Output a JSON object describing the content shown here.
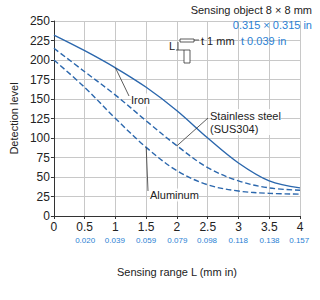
{
  "chart_data": {
    "type": "line",
    "xlabel": "Sensing range L (mm in)",
    "ylabel": "Detection level",
    "x": [
      0,
      0.5,
      1,
      1.5,
      2,
      2.5,
      3,
      3.5,
      4
    ],
    "series": [
      {
        "name": "Iron",
        "color": "#2b67ad",
        "line_style": "solid",
        "values": [
          232,
          212,
          190,
          165,
          135,
          100,
          68,
          45,
          36
        ]
      },
      {
        "name": "Stainless steel\n(SUS304)",
        "color": "#2b67ad",
        "line_style": "dashed",
        "values": [
          215,
          185,
          155,
          122,
          90,
          62,
          45,
          36,
          33
        ]
      },
      {
        "name": "Aluminum",
        "color": "#2b67ad",
        "line_style": "dashed",
        "values": [
          200,
          165,
          125,
          88,
          58,
          40,
          32,
          29,
          28
        ]
      }
    ],
    "xlim": [
      0,
      4
    ],
    "xticks": [
      0,
      0.5,
      1,
      1.5,
      2,
      2.5,
      3,
      3.5,
      4
    ],
    "x2lim": [
      0,
      0.15748
    ],
    "x2ticks": [
      {
        "value": 0.02,
        "label": "0.020"
      },
      0.039,
      0.059,
      0.079,
      0.098,
      0.118,
      0.138,
      0.157
    ],
    "ylim": [
      0,
      250
    ],
    "yticks": [
      0,
      25,
      50,
      75,
      100,
      125,
      150,
      175,
      200,
      225,
      250
    ],
    "grid": true,
    "annotations": {
      "object": "Sensing object 8 × 8 mm",
      "object_in": "0.315 × 0.315 in",
      "distance": "L",
      "thickness": "t 1 mm",
      "thickness_in": "t 0.039 in"
    }
  }
}
